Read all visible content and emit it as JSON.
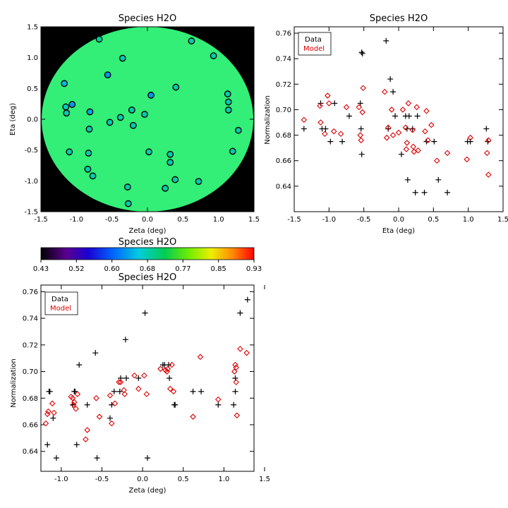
{
  "chart_data": [
    {
      "type": "scatter",
      "title": "Species H2O",
      "xlabel": "Zeta (deg)",
      "ylabel": "Eta (deg)",
      "xlim": [
        -1.5,
        1.5
      ],
      "ylim": [
        -1.5,
        1.5
      ],
      "xticks": [
        "-1.5",
        "-1.0",
        "-0.5",
        "0.0",
        "0.5",
        "1.0",
        "1.5"
      ],
      "yticks": [
        "-1.5",
        "-1.0",
        "-0.5",
        "0.0",
        "0.5",
        "1.0",
        "1.5"
      ],
      "background": "#000000",
      "disk_color": "#33ee77",
      "points": [
        {
          "x": -0.68,
          "y": 1.3,
          "c": 0.69
        },
        {
          "x": 0.62,
          "y": 1.27,
          "c": 0.68
        },
        {
          "x": 0.93,
          "y": 1.03,
          "c": 0.68
        },
        {
          "x": -0.35,
          "y": 0.99,
          "c": 0.68
        },
        {
          "x": -0.56,
          "y": 0.72,
          "c": 0.63
        },
        {
          "x": -1.17,
          "y": 0.58,
          "c": 0.65
        },
        {
          "x": 0.4,
          "y": 0.52,
          "c": 0.68
        },
        {
          "x": 0.05,
          "y": 0.39,
          "c": 0.63
        },
        {
          "x": 1.13,
          "y": 0.41,
          "c": 0.68
        },
        {
          "x": -1.06,
          "y": 0.24,
          "c": 0.63
        },
        {
          "x": 1.14,
          "y": 0.28,
          "c": 0.68
        },
        {
          "x": -1.15,
          "y": 0.2,
          "c": 0.67
        },
        {
          "x": 1.14,
          "y": 0.15,
          "c": 0.68
        },
        {
          "x": -0.22,
          "y": 0.15,
          "c": 0.68
        },
        {
          "x": -1.14,
          "y": 0.1,
          "c": 0.68
        },
        {
          "x": -0.81,
          "y": 0.12,
          "c": 0.64
        },
        {
          "x": -0.04,
          "y": 0.08,
          "c": 0.68
        },
        {
          "x": -0.38,
          "y": 0.03,
          "c": 0.68
        },
        {
          "x": -0.53,
          "y": -0.05,
          "c": 0.68
        },
        {
          "x": -0.2,
          "y": -0.1,
          "c": 0.68
        },
        {
          "x": -0.82,
          "y": -0.16,
          "c": 0.68
        },
        {
          "x": 1.28,
          "y": -0.18,
          "c": 0.68
        },
        {
          "x": -1.1,
          "y": -0.53,
          "c": 0.68
        },
        {
          "x": 0.02,
          "y": -0.53,
          "c": 0.68
        },
        {
          "x": -0.83,
          "y": -0.55,
          "c": 0.68
        },
        {
          "x": 1.2,
          "y": -0.52,
          "c": 0.68
        },
        {
          "x": 0.32,
          "y": -0.57,
          "c": 0.68
        },
        {
          "x": 0.32,
          "y": -0.7,
          "c": 0.68
        },
        {
          "x": -0.84,
          "y": -0.81,
          "c": 0.68
        },
        {
          "x": -0.77,
          "y": -0.92,
          "c": 0.68
        },
        {
          "x": 0.39,
          "y": -0.98,
          "c": 0.68
        },
        {
          "x": 0.72,
          "y": -1.01,
          "c": 0.68
        },
        {
          "x": -0.28,
          "y": -1.1,
          "c": 0.68
        },
        {
          "x": 0.25,
          "y": -1.12,
          "c": 0.68
        },
        {
          "x": -0.27,
          "y": -1.37,
          "c": 0.68
        }
      ]
    },
    {
      "type": "scatter",
      "title": "Species H2O",
      "xlabel": "Eta (deg)",
      "ylabel": "Normalization",
      "xlim": [
        -1.5,
        1.5
      ],
      "ylim": [
        0.62,
        0.765
      ],
      "xticks": [
        "-1.5",
        "-1.0",
        "-0.5",
        "0.0",
        "0.5",
        "1.0",
        "1.5"
      ],
      "yticks": [
        "0.64",
        "0.66",
        "0.68",
        "0.70",
        "0.72",
        "0.74",
        "0.76"
      ],
      "legend": {
        "position": "top-left",
        "entries": [
          "Data",
          "Model"
        ]
      },
      "series": [
        {
          "name": "Data",
          "marker": "plus",
          "color": "#000000",
          "points": [
            [
              -1.36,
              0.685
            ],
            [
              -1.12,
              0.705
            ],
            [
              -1.1,
              0.685
            ],
            [
              -1.05,
              0.685
            ],
            [
              -0.98,
              0.675
            ],
            [
              -0.92,
              0.705
            ],
            [
              -0.81,
              0.675
            ],
            [
              -0.71,
              0.695
            ],
            [
              -0.55,
              0.705
            ],
            [
              -0.54,
              0.685
            ],
            [
              -0.53,
              0.665
            ],
            [
              -0.53,
              0.745
            ],
            [
              -0.52,
              0.744
            ],
            [
              -0.18,
              0.754
            ],
            [
              -0.15,
              0.685
            ],
            [
              -0.12,
              0.724
            ],
            [
              -0.08,
              0.714
            ],
            [
              -0.05,
              0.695
            ],
            [
              0.04,
              0.665
            ],
            [
              0.1,
              0.695
            ],
            [
              0.12,
              0.685
            ],
            [
              0.13,
              0.645
            ],
            [
              0.15,
              0.695
            ],
            [
              0.2,
              0.685
            ],
            [
              0.24,
              0.635
            ],
            [
              0.27,
              0.695
            ],
            [
              0.37,
              0.635
            ],
            [
              0.4,
              0.675
            ],
            [
              0.51,
              0.675
            ],
            [
              0.57,
              0.645
            ],
            [
              0.7,
              0.635
            ],
            [
              0.99,
              0.675
            ],
            [
              1.03,
              0.675
            ],
            [
              1.26,
              0.685
            ],
            [
              1.28,
              0.675
            ]
          ]
        },
        {
          "name": "Model",
          "marker": "diamond",
          "color": "#dd0000",
          "points": [
            [
              -1.36,
              0.692
            ],
            [
              -1.13,
              0.703
            ],
            [
              -1.12,
              0.69
            ],
            [
              -1.06,
              0.681
            ],
            [
              -1.02,
              0.711
            ],
            [
              -1.0,
              0.705
            ],
            [
              -0.93,
              0.683
            ],
            [
              -0.83,
              0.681
            ],
            [
              -0.75,
              0.702
            ],
            [
              -0.57,
              0.702
            ],
            [
              -0.55,
              0.68
            ],
            [
              -0.54,
              0.676
            ],
            [
              -0.52,
              0.698
            ],
            [
              -0.51,
              0.717
            ],
            [
              -0.2,
              0.714
            ],
            [
              -0.17,
              0.678
            ],
            [
              -0.15,
              0.686
            ],
            [
              -0.1,
              0.7
            ],
            [
              -0.08,
              0.68
            ],
            [
              0.0,
              0.682
            ],
            [
              0.06,
              0.7
            ],
            [
              0.1,
              0.686
            ],
            [
              0.11,
              0.669
            ],
            [
              0.12,
              0.674
            ],
            [
              0.14,
              0.705
            ],
            [
              0.2,
              0.684
            ],
            [
              0.21,
              0.671
            ],
            [
              0.22,
              0.667
            ],
            [
              0.26,
              0.702
            ],
            [
              0.28,
              0.668
            ],
            [
              0.38,
              0.683
            ],
            [
              0.4,
              0.699
            ],
            [
              0.42,
              0.676
            ],
            [
              0.47,
              0.688
            ],
            [
              0.55,
              0.66
            ],
            [
              0.7,
              0.666
            ],
            [
              0.98,
              0.661
            ],
            [
              1.03,
              0.678
            ],
            [
              1.27,
              0.666
            ],
            [
              1.29,
              0.649
            ],
            [
              1.29,
              0.676
            ]
          ]
        }
      ]
    },
    {
      "type": "colorbar",
      "title": "Species H2O",
      "range": [
        0.43,
        0.93
      ],
      "tick_labels": [
        "0.43",
        "0.52",
        "0.60",
        "0.68",
        "0.77",
        "0.85",
        "0.93"
      ]
    },
    {
      "type": "scatter",
      "title": "Species H2O",
      "xlabel": "Zeta (deg)",
      "ylabel": "Normalization",
      "xlim": [
        -1.25,
        1.37
      ],
      "ylim": [
        0.625,
        0.765
      ],
      "xticks": [
        "-1.0",
        "-0.5",
        "0.0",
        "0.5",
        "1.0",
        "1.5"
      ],
      "xtick_values": [
        -1.0,
        -0.5,
        0.0,
        0.5,
        1.0,
        1.5
      ],
      "yticks": [
        "0.64",
        "0.66",
        "0.68",
        "0.70",
        "0.72",
        "0.74",
        "0.76"
      ],
      "legend": {
        "position": "top-left",
        "entries": [
          "Data",
          "Model"
        ]
      },
      "series": [
        {
          "name": "Data",
          "marker": "plus",
          "color": "#000000",
          "points": [
            [
              -1.17,
              0.645
            ],
            [
              -1.15,
              0.685
            ],
            [
              -1.14,
              0.685
            ],
            [
              -1.1,
              0.665
            ],
            [
              -1.06,
              0.635
            ],
            [
              -0.86,
              0.675
            ],
            [
              -0.84,
              0.685
            ],
            [
              -0.83,
              0.685
            ],
            [
              -0.81,
              0.645
            ],
            [
              -0.78,
              0.705
            ],
            [
              -0.68,
              0.675
            ],
            [
              -0.58,
              0.714
            ],
            [
              -0.56,
              0.635
            ],
            [
              -0.4,
              0.665
            ],
            [
              -0.38,
              0.675
            ],
            [
              -0.35,
              0.685
            ],
            [
              -0.28,
              0.685
            ],
            [
              -0.27,
              0.695
            ],
            [
              -0.21,
              0.724
            ],
            [
              -0.2,
              0.695
            ],
            [
              -0.05,
              0.695
            ],
            [
              0.03,
              0.744
            ],
            [
              0.06,
              0.635
            ],
            [
              0.25,
              0.705
            ],
            [
              0.27,
              0.705
            ],
            [
              0.32,
              0.705
            ],
            [
              0.33,
              0.695
            ],
            [
              0.39,
              0.675
            ],
            [
              0.4,
              0.675
            ],
            [
              0.62,
              0.685
            ],
            [
              0.72,
              0.685
            ],
            [
              0.93,
              0.675
            ],
            [
              1.12,
              0.675
            ],
            [
              1.14,
              0.685
            ],
            [
              1.14,
              0.695
            ],
            [
              1.2,
              0.744
            ],
            [
              1.29,
              0.754
            ]
          ]
        },
        {
          "name": "Model",
          "marker": "diamond",
          "color": "#dd0000",
          "points": [
            [
              -1.19,
              0.661
            ],
            [
              -1.17,
              0.668
            ],
            [
              -1.16,
              0.67
            ],
            [
              -1.11,
              0.676
            ],
            [
              -1.09,
              0.669
            ],
            [
              -0.88,
              0.681
            ],
            [
              -0.86,
              0.68
            ],
            [
              -0.85,
              0.675
            ],
            [
              -0.84,
              0.677
            ],
            [
              -0.82,
              0.672
            ],
            [
              -0.8,
              0.683
            ],
            [
              -0.7,
              0.649
            ],
            [
              -0.68,
              0.656
            ],
            [
              -0.57,
              0.68
            ],
            [
              -0.53,
              0.666
            ],
            [
              -0.4,
              0.682
            ],
            [
              -0.38,
              0.661
            ],
            [
              -0.34,
              0.676
            ],
            [
              -0.29,
              0.692
            ],
            [
              -0.27,
              0.692
            ],
            [
              -0.23,
              0.686
            ],
            [
              -0.22,
              0.683
            ],
            [
              -0.1,
              0.697
            ],
            [
              -0.05,
              0.687
            ],
            [
              0.02,
              0.697
            ],
            [
              0.05,
              0.683
            ],
            [
              0.22,
              0.702
            ],
            [
              0.28,
              0.701
            ],
            [
              0.3,
              0.7
            ],
            [
              0.31,
              0.702
            ],
            [
              0.34,
              0.687
            ],
            [
              0.36,
              0.705
            ],
            [
              0.38,
              0.685
            ],
            [
              0.62,
              0.666
            ],
            [
              0.71,
              0.711
            ],
            [
              0.93,
              0.679
            ],
            [
              1.13,
              0.7
            ],
            [
              1.14,
              0.705
            ],
            [
              1.15,
              0.692
            ],
            [
              1.15,
              0.703
            ],
            [
              1.16,
              0.667
            ],
            [
              1.2,
              0.717
            ],
            [
              1.28,
              0.714
            ]
          ]
        }
      ]
    }
  ]
}
